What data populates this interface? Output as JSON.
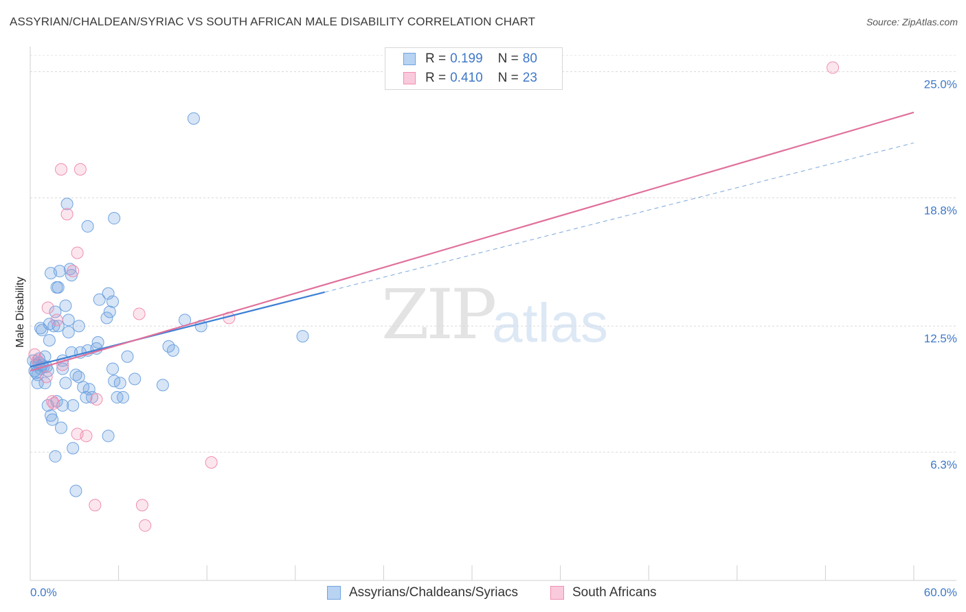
{
  "title": "ASSYRIAN/CHALDEAN/SYRIAC VS SOUTH AFRICAN MALE DISABILITY CORRELATION CHART",
  "source": "Source: ZipAtlas.com",
  "watermark": {
    "zip": "ZIP",
    "atlas": "atlas"
  },
  "legend": {
    "rows": [
      {
        "r_label": "R =",
        "r_value": "0.199",
        "n_label": "N =",
        "n_value": "80",
        "color": "#6fa3e0"
      },
      {
        "r_label": "R =",
        "r_value": "0.410",
        "n_label": "N =",
        "n_value": "23",
        "color": "#f08db0"
      }
    ]
  },
  "bottom_legend": [
    {
      "label": "Assyrians/Chaldeans/Syriacs",
      "color": "#6fa3e0"
    },
    {
      "label": "South Africans",
      "color": "#f08db0"
    }
  ],
  "chart_data": {
    "type": "scatter",
    "xlabel": "",
    "ylabel": "Male Disability",
    "x_tick_labels": [
      "0.0%",
      "60.0%"
    ],
    "y_tick_labels": [
      "6.3%",
      "12.5%",
      "18.8%",
      "25.0%"
    ],
    "y_ticks": [
      6.3,
      12.5,
      18.8,
      25.0
    ],
    "xlim": [
      0,
      60
    ],
    "ylim": [
      0,
      26.5
    ],
    "grid": true,
    "series": [
      {
        "name": "Assyrians/Chaldeans/Syriacs",
        "color": "#6fa3e0",
        "trend": {
          "x0": 0,
          "y0": 10.5,
          "x1": 60,
          "y1": 21.5,
          "solid_until": 20
        },
        "points": [
          [
            0.2,
            10.8
          ],
          [
            0.3,
            10.3
          ],
          [
            0.4,
            10.6
          ],
          [
            0.5,
            10.1
          ],
          [
            0.5,
            9.7
          ],
          [
            0.6,
            10.9
          ],
          [
            0.7,
            10.4
          ],
          [
            0.8,
            10.6
          ],
          [
            0.9,
            10.5
          ],
          [
            1.0,
            11.0
          ],
          [
            0.4,
            10.2
          ],
          [
            0.6,
            10.7
          ],
          [
            1.1,
            10.5
          ],
          [
            1.2,
            10.3
          ],
          [
            0.8,
            12.3
          ],
          [
            0.7,
            12.4
          ],
          [
            1.3,
            11.8
          ],
          [
            1.3,
            12.6
          ],
          [
            1.6,
            12.5
          ],
          [
            1.9,
            12.5
          ],
          [
            1.4,
            15.1
          ],
          [
            2.0,
            15.2
          ],
          [
            2.7,
            15.3
          ],
          [
            2.8,
            15.0
          ],
          [
            1.8,
            14.4
          ],
          [
            1.9,
            14.4
          ],
          [
            1.7,
            13.2
          ],
          [
            2.4,
            13.5
          ],
          [
            2.6,
            12.8
          ],
          [
            3.3,
            12.5
          ],
          [
            2.6,
            12.2
          ],
          [
            2.8,
            11.2
          ],
          [
            3.4,
            11.2
          ],
          [
            3.9,
            11.3
          ],
          [
            4.5,
            11.4
          ],
          [
            4.6,
            11.7
          ],
          [
            2.2,
            10.4
          ],
          [
            3.1,
            10.1
          ],
          [
            2.2,
            10.8
          ],
          [
            3.3,
            10.0
          ],
          [
            1.0,
            9.7
          ],
          [
            2.4,
            9.7
          ],
          [
            3.6,
            9.5
          ],
          [
            4.0,
            9.4
          ],
          [
            3.8,
            9.0
          ],
          [
            4.2,
            9.0
          ],
          [
            1.2,
            8.6
          ],
          [
            1.8,
            8.8
          ],
          [
            2.2,
            8.6
          ],
          [
            2.9,
            8.6
          ],
          [
            1.4,
            8.1
          ],
          [
            1.5,
            7.9
          ],
          [
            2.1,
            7.5
          ],
          [
            5.3,
            7.1
          ],
          [
            2.9,
            6.5
          ],
          [
            1.7,
            6.1
          ],
          [
            3.1,
            4.4
          ],
          [
            2.5,
            18.5
          ],
          [
            3.9,
            17.4
          ],
          [
            5.7,
            17.8
          ],
          [
            5.3,
            14.1
          ],
          [
            5.6,
            13.7
          ],
          [
            5.4,
            13.2
          ],
          [
            5.2,
            12.9
          ],
          [
            5.6,
            10.4
          ],
          [
            4.7,
            13.8
          ],
          [
            5.7,
            9.8
          ],
          [
            6.1,
            9.7
          ],
          [
            5.9,
            9.0
          ],
          [
            6.3,
            9.0
          ],
          [
            6.6,
            11.0
          ],
          [
            7.1,
            9.9
          ],
          [
            9.0,
            9.6
          ],
          [
            9.4,
            11.5
          ],
          [
            9.7,
            11.3
          ],
          [
            10.5,
            12.8
          ],
          [
            11.6,
            12.5
          ],
          [
            11.1,
            22.7
          ],
          [
            18.5,
            12.0
          ],
          [
            0.4,
            10.6
          ]
        ]
      },
      {
        "name": "South Africans",
        "color": "#f08db0",
        "trend": {
          "x0": 0,
          "y0": 10.3,
          "x1": 60,
          "y1": 23.0,
          "solid_until": 60
        },
        "points": [
          [
            0.3,
            11.1
          ],
          [
            0.5,
            10.8
          ],
          [
            1.1,
            10.0
          ],
          [
            1.2,
            13.4
          ],
          [
            1.5,
            8.8
          ],
          [
            1.6,
            8.7
          ],
          [
            1.8,
            12.8
          ],
          [
            2.2,
            10.6
          ],
          [
            2.5,
            18.0
          ],
          [
            2.9,
            15.2
          ],
          [
            3.2,
            16.1
          ],
          [
            2.1,
            20.2
          ],
          [
            3.4,
            20.2
          ],
          [
            3.2,
            7.2
          ],
          [
            3.8,
            7.1
          ],
          [
            4.5,
            8.9
          ],
          [
            4.4,
            3.7
          ],
          [
            7.4,
            13.1
          ],
          [
            7.6,
            3.7
          ],
          [
            7.8,
            2.7
          ],
          [
            12.3,
            5.8
          ],
          [
            13.5,
            12.9
          ],
          [
            54.5,
            25.2
          ]
        ]
      }
    ]
  }
}
